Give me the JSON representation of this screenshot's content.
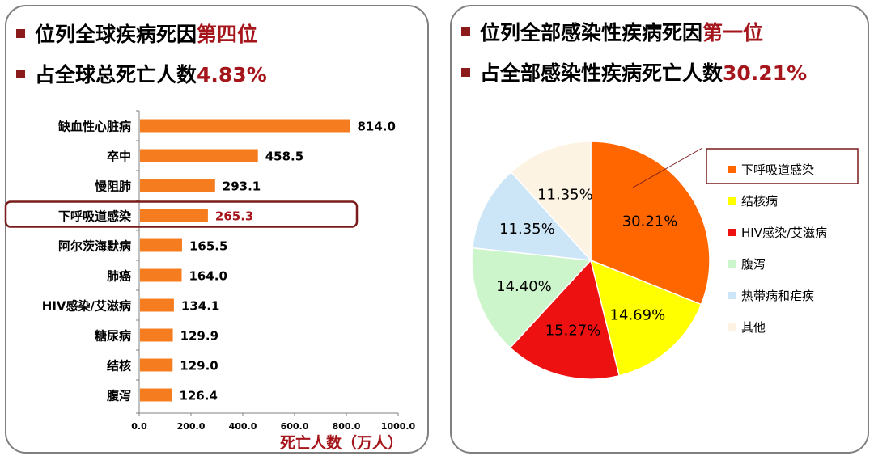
{
  "left": {
    "bullets": [
      {
        "text": "位列全球疾病死因",
        "highlight": "第四位"
      },
      {
        "text": "占全球总死亡人数",
        "highlight": "4.83%"
      }
    ]
  },
  "right": {
    "bullets": [
      {
        "text": "位列全部感染性疾病死因",
        "highlight": "第一位"
      },
      {
        "text": "占全部感染性疾病死亡人数",
        "highlight": "30.21%"
      }
    ]
  },
  "colors": {
    "bar": "#f57c1f",
    "highlight_text": "#a5161c",
    "callout_border": "#7a1c1c",
    "bullet": "#8b1a1a"
  },
  "chart_data": [
    {
      "type": "bar",
      "orientation": "horizontal",
      "categories": [
        "缺血性心脏病",
        "卒中",
        "慢阻肺",
        "下呼吸道感染",
        "阿尔茨海默病",
        "肺癌",
        "HIV感染/艾滋病",
        "糖尿病",
        "结核",
        "腹泻"
      ],
      "values": [
        814.0,
        458.5,
        293.1,
        265.3,
        165.5,
        164.0,
        134.1,
        129.9,
        129.0,
        126.4
      ],
      "value_labels": [
        "814.0",
        "458.5",
        "293.1",
        "265.3",
        "165.5",
        "164.0",
        "134.1",
        "129.9",
        "129.0",
        "126.4"
      ],
      "highlighted_category": "下呼吸道感染",
      "xlabel": "死亡人数（万人）",
      "xlim": [
        0,
        1000
      ],
      "xticks": [
        "0.0",
        "200.0",
        "400.0",
        "600.0",
        "800.0",
        "1000.0"
      ],
      "grid": false
    },
    {
      "type": "pie",
      "labels": [
        "下呼吸道感染",
        "结核病",
        "HIV感染/艾滋病",
        "腹泻",
        "热带病和疟疾",
        "其他"
      ],
      "values": [
        30.21,
        14.69,
        15.27,
        14.4,
        11.35,
        11.35
      ],
      "value_labels": [
        "30.21%",
        "14.69%",
        "15.27%",
        "14.40%",
        "11.35%",
        "11.35%"
      ],
      "colors": [
        "#ff6600",
        "#ffff00",
        "#ee1111",
        "#ccf5cc",
        "#cce6f7",
        "#fdf3e3"
      ],
      "legend_position": "right",
      "highlighted_label": "下呼吸道感染"
    }
  ]
}
